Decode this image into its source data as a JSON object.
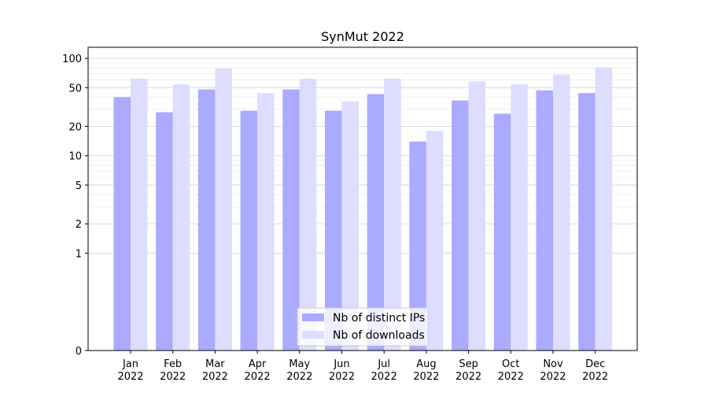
{
  "chart_data": {
    "type": "bar",
    "title": "SynMut 2022",
    "xlabel": "",
    "ylabel": "",
    "y_scale": "symlog",
    "ylim": [
      0,
      130
    ],
    "y_ticks": [
      0,
      1,
      2,
      5,
      10,
      20,
      50,
      100
    ],
    "y_tick_labels": [
      "0",
      "1",
      "2",
      "5",
      "10",
      "20",
      "50",
      "100"
    ],
    "grid": true,
    "legend_placement": "bottom-center",
    "categories": [
      "Jan\n2022",
      "Feb\n2022",
      "Mar\n2022",
      "Apr\n2022",
      "May\n2022",
      "Jun\n2022",
      "Jul\n2022",
      "Aug\n2022",
      "Sep\n2022",
      "Oct\n2022",
      "Nov\n2022",
      "Dec\n2022"
    ],
    "series": [
      {
        "name": "Nb of distinct IPs",
        "color": "#aaaaff",
        "values": [
          40,
          28,
          48,
          29,
          48,
          29,
          43,
          14,
          37,
          27,
          47,
          44
        ]
      },
      {
        "name": "Nb of downloads",
        "color": "#ddddff",
        "values": [
          62,
          54,
          79,
          44,
          62,
          36,
          62,
          18,
          58,
          54,
          68,
          81
        ]
      }
    ]
  }
}
